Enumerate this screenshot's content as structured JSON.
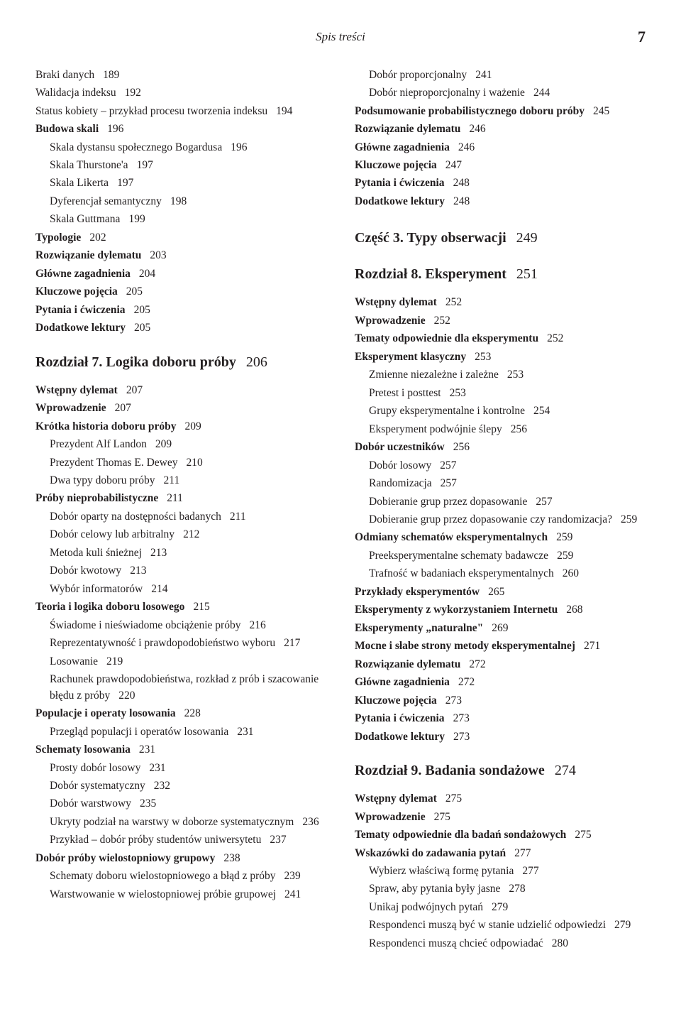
{
  "header_title": "Spis treści",
  "page_number": "7",
  "left_column": [
    {
      "type": "entry",
      "lvl": 0,
      "bold": false,
      "text": "Braki danych",
      "pg": "189"
    },
    {
      "type": "entry",
      "lvl": 0,
      "bold": false,
      "text": "Walidacja indeksu",
      "pg": "192"
    },
    {
      "type": "entry",
      "lvl": 0,
      "bold": false,
      "text": "Status kobiety – przykład procesu tworzenia indeksu",
      "pg": "194"
    },
    {
      "type": "entry",
      "lvl": 0,
      "bold": true,
      "text": "Budowa skali",
      "pg": "196"
    },
    {
      "type": "entry",
      "lvl": 1,
      "bold": false,
      "text": "Skala dystansu społecznego Bogardusa",
      "pg": "196"
    },
    {
      "type": "entry",
      "lvl": 1,
      "bold": false,
      "text": "Skala Thurstone'a",
      "pg": "197"
    },
    {
      "type": "entry",
      "lvl": 1,
      "bold": false,
      "text": "Skala Likerta",
      "pg": "197"
    },
    {
      "type": "entry",
      "lvl": 1,
      "bold": false,
      "text": "Dyferencjał semantyczny",
      "pg": "198"
    },
    {
      "type": "entry",
      "lvl": 1,
      "bold": false,
      "text": "Skala Guttmana",
      "pg": "199"
    },
    {
      "type": "entry",
      "lvl": 0,
      "bold": true,
      "text": "Typologie",
      "pg": "202"
    },
    {
      "type": "entry",
      "lvl": 0,
      "bold": true,
      "text": "Rozwiązanie dylematu",
      "pg": "203"
    },
    {
      "type": "entry",
      "lvl": 0,
      "bold": true,
      "text": "Główne zagadnienia",
      "pg": "204"
    },
    {
      "type": "entry",
      "lvl": 0,
      "bold": true,
      "text": "Kluczowe pojęcia",
      "pg": "205"
    },
    {
      "type": "entry",
      "lvl": 0,
      "bold": true,
      "text": "Pytania i ćwiczenia",
      "pg": "205"
    },
    {
      "type": "entry",
      "lvl": 0,
      "bold": true,
      "text": "Dodatkowe lektury",
      "pg": "205"
    },
    {
      "type": "chapter",
      "text": "Rozdział 7. Logika doboru próby",
      "pg": "206"
    },
    {
      "type": "entry",
      "lvl": 0,
      "bold": true,
      "text": "Wstępny dylemat",
      "pg": "207"
    },
    {
      "type": "entry",
      "lvl": 0,
      "bold": true,
      "text": "Wprowadzenie",
      "pg": "207"
    },
    {
      "type": "entry",
      "lvl": 0,
      "bold": true,
      "text": "Krótka historia doboru próby",
      "pg": "209"
    },
    {
      "type": "entry",
      "lvl": 1,
      "bold": false,
      "text": "Prezydent Alf Landon",
      "pg": "209"
    },
    {
      "type": "entry",
      "lvl": 1,
      "bold": false,
      "text": "Prezydent Thomas E. Dewey",
      "pg": "210"
    },
    {
      "type": "entry",
      "lvl": 1,
      "bold": false,
      "text": "Dwa typy doboru próby",
      "pg": "211"
    },
    {
      "type": "entry",
      "lvl": 0,
      "bold": true,
      "text": "Próby nieprobabilistyczne",
      "pg": "211"
    },
    {
      "type": "entry",
      "lvl": 1,
      "bold": false,
      "text": "Dobór oparty na dostępności badanych",
      "pg": "211"
    },
    {
      "type": "entry",
      "lvl": 1,
      "bold": false,
      "text": "Dobór celowy lub arbitralny",
      "pg": "212"
    },
    {
      "type": "entry",
      "lvl": 1,
      "bold": false,
      "text": "Metoda kuli śnieżnej",
      "pg": "213"
    },
    {
      "type": "entry",
      "lvl": 1,
      "bold": false,
      "text": "Dobór kwotowy",
      "pg": "213"
    },
    {
      "type": "entry",
      "lvl": 1,
      "bold": false,
      "text": "Wybór informatorów",
      "pg": "214"
    },
    {
      "type": "entry",
      "lvl": 0,
      "bold": true,
      "text": "Teoria i logika doboru losowego",
      "pg": "215"
    },
    {
      "type": "entry",
      "lvl": 1,
      "bold": false,
      "text": "Świadome i nieświadome obciążenie próby",
      "pg": "216"
    },
    {
      "type": "entry",
      "lvl": 1,
      "bold": false,
      "text": "Reprezentatywność i prawdopodobieństwo wyboru",
      "pg": "217"
    },
    {
      "type": "entry",
      "lvl": 1,
      "bold": false,
      "text": "Losowanie",
      "pg": "219"
    },
    {
      "type": "entry",
      "lvl": 1,
      "bold": false,
      "text": "Rachunek prawdopodobieństwa, rozkład z prób i szacowanie błędu z próby",
      "pg": "220"
    },
    {
      "type": "entry",
      "lvl": 0,
      "bold": true,
      "text": "Populacje i operaty losowania",
      "pg": "228"
    },
    {
      "type": "entry",
      "lvl": 1,
      "bold": false,
      "text": "Przegląd populacji i operatów losowania",
      "pg": "231"
    },
    {
      "type": "entry",
      "lvl": 0,
      "bold": true,
      "text": "Schematy losowania",
      "pg": "231"
    },
    {
      "type": "entry",
      "lvl": 1,
      "bold": false,
      "text": "Prosty dobór losowy",
      "pg": "231"
    },
    {
      "type": "entry",
      "lvl": 1,
      "bold": false,
      "text": "Dobór systematyczny",
      "pg": "232"
    },
    {
      "type": "entry",
      "lvl": 1,
      "bold": false,
      "text": "Dobór warstwowy",
      "pg": "235"
    },
    {
      "type": "entry",
      "lvl": 1,
      "bold": false,
      "text": "Ukryty podział na warstwy w doborze systematycznym",
      "pg": "236"
    },
    {
      "type": "entry",
      "lvl": 1,
      "bold": false,
      "text": "Przykład – dobór próby studentów uniwersytetu",
      "pg": "237"
    },
    {
      "type": "entry",
      "lvl": 0,
      "bold": true,
      "text": "Dobór próby wielostopniowy grupowy",
      "pg": "238"
    },
    {
      "type": "entry",
      "lvl": 1,
      "bold": false,
      "text": "Schematy doboru wielostopniowego a błąd z próby",
      "pg": "239"
    },
    {
      "type": "entry",
      "lvl": 1,
      "bold": false,
      "text": "Warstwowanie w wielostopniowej próbie grupowej",
      "pg": "241"
    }
  ],
  "right_column": [
    {
      "type": "entry",
      "lvl": 1,
      "bold": false,
      "text": "Dobór proporcjonalny",
      "pg": "241"
    },
    {
      "type": "entry",
      "lvl": 1,
      "bold": false,
      "text": "Dobór nieproporcjonalny i ważenie",
      "pg": "244"
    },
    {
      "type": "entry",
      "lvl": 0,
      "bold": true,
      "text": "Podsumowanie probabilistycznego doboru próby",
      "pg": "245"
    },
    {
      "type": "entry",
      "lvl": 0,
      "bold": true,
      "text": "Rozwiązanie dylematu",
      "pg": "246"
    },
    {
      "type": "entry",
      "lvl": 0,
      "bold": true,
      "text": "Główne zagadnienia",
      "pg": "246"
    },
    {
      "type": "entry",
      "lvl": 0,
      "bold": true,
      "text": "Kluczowe pojęcia",
      "pg": "247"
    },
    {
      "type": "entry",
      "lvl": 0,
      "bold": true,
      "text": "Pytania i ćwiczenia",
      "pg": "248"
    },
    {
      "type": "entry",
      "lvl": 0,
      "bold": true,
      "text": "Dodatkowe lektury",
      "pg": "248"
    },
    {
      "type": "part",
      "text": "Część 3. Typy obserwacji",
      "pg": "249"
    },
    {
      "type": "chapter",
      "text": "Rozdział 8. Eksperyment",
      "pg": "251"
    },
    {
      "type": "entry",
      "lvl": 0,
      "bold": true,
      "text": "Wstępny dylemat",
      "pg": "252"
    },
    {
      "type": "entry",
      "lvl": 0,
      "bold": true,
      "text": "Wprowadzenie",
      "pg": "252"
    },
    {
      "type": "entry",
      "lvl": 0,
      "bold": true,
      "text": "Tematy odpowiednie dla eksperymentu",
      "pg": "252"
    },
    {
      "type": "entry",
      "lvl": 0,
      "bold": true,
      "text": "Eksperyment klasyczny",
      "pg": "253"
    },
    {
      "type": "entry",
      "lvl": 1,
      "bold": false,
      "text": "Zmienne niezależne i zależne",
      "pg": "253"
    },
    {
      "type": "entry",
      "lvl": 1,
      "bold": false,
      "text": "Pretest i posttest",
      "pg": "253"
    },
    {
      "type": "entry",
      "lvl": 1,
      "bold": false,
      "text": "Grupy eksperymentalne i kontrolne",
      "pg": "254"
    },
    {
      "type": "entry",
      "lvl": 1,
      "bold": false,
      "text": "Eksperyment podwójnie ślepy",
      "pg": "256"
    },
    {
      "type": "entry",
      "lvl": 0,
      "bold": true,
      "text": "Dobór uczestników",
      "pg": "256"
    },
    {
      "type": "entry",
      "lvl": 1,
      "bold": false,
      "text": "Dobór losowy",
      "pg": "257"
    },
    {
      "type": "entry",
      "lvl": 1,
      "bold": false,
      "text": "Randomizacja",
      "pg": "257"
    },
    {
      "type": "entry",
      "lvl": 1,
      "bold": false,
      "text": "Dobieranie grup przez dopasowanie",
      "pg": "257"
    },
    {
      "type": "entry",
      "lvl": 1,
      "bold": false,
      "text": "Dobieranie grup przez dopasowanie czy randomizacja?",
      "pg": "259"
    },
    {
      "type": "entry",
      "lvl": 0,
      "bold": true,
      "text": "Odmiany schematów eksperymentalnych",
      "pg": "259"
    },
    {
      "type": "entry",
      "lvl": 1,
      "bold": false,
      "text": "Preeksperymentalne schematy badawcze",
      "pg": "259"
    },
    {
      "type": "entry",
      "lvl": 1,
      "bold": false,
      "text": "Trafność w badaniach eksperymentalnych",
      "pg": "260"
    },
    {
      "type": "entry",
      "lvl": 0,
      "bold": true,
      "text": "Przykłady eksperymentów",
      "pg": "265"
    },
    {
      "type": "entry",
      "lvl": 0,
      "bold": true,
      "text": "Eksperymenty z wykorzystaniem Internetu",
      "pg": "268"
    },
    {
      "type": "entry",
      "lvl": 0,
      "bold": true,
      "text": "Eksperymenty „naturalne\"",
      "pg": "269"
    },
    {
      "type": "entry",
      "lvl": 0,
      "bold": true,
      "text": "Mocne i słabe strony metody eksperymentalnej",
      "pg": "271"
    },
    {
      "type": "entry",
      "lvl": 0,
      "bold": true,
      "text": "Rozwiązanie dylematu",
      "pg": "272"
    },
    {
      "type": "entry",
      "lvl": 0,
      "bold": true,
      "text": "Główne zagadnienia",
      "pg": "272"
    },
    {
      "type": "entry",
      "lvl": 0,
      "bold": true,
      "text": "Kluczowe pojęcia",
      "pg": "273"
    },
    {
      "type": "entry",
      "lvl": 0,
      "bold": true,
      "text": "Pytania i ćwiczenia",
      "pg": "273"
    },
    {
      "type": "entry",
      "lvl": 0,
      "bold": true,
      "text": "Dodatkowe lektury",
      "pg": "273"
    },
    {
      "type": "chapter",
      "text": "Rozdział 9. Badania sondażowe",
      "pg": "274"
    },
    {
      "type": "entry",
      "lvl": 0,
      "bold": true,
      "text": "Wstępny dylemat",
      "pg": "275"
    },
    {
      "type": "entry",
      "lvl": 0,
      "bold": true,
      "text": "Wprowadzenie",
      "pg": "275"
    },
    {
      "type": "entry",
      "lvl": 0,
      "bold": true,
      "text": "Tematy odpowiednie dla badań sondażowych",
      "pg": "275"
    },
    {
      "type": "entry",
      "lvl": 0,
      "bold": true,
      "text": "Wskazówki do zadawania pytań",
      "pg": "277"
    },
    {
      "type": "entry",
      "lvl": 1,
      "bold": false,
      "text": "Wybierz właściwą formę pytania",
      "pg": "277"
    },
    {
      "type": "entry",
      "lvl": 1,
      "bold": false,
      "text": "Spraw, aby pytania były jasne",
      "pg": "278"
    },
    {
      "type": "entry",
      "lvl": 1,
      "bold": false,
      "text": "Unikaj podwójnych pytań",
      "pg": "279"
    },
    {
      "type": "entry",
      "lvl": 1,
      "bold": false,
      "text": "Respondenci muszą być w stanie udzielić odpowiedzi",
      "pg": "279"
    },
    {
      "type": "entry",
      "lvl": 1,
      "bold": false,
      "text": "Respondenci muszą chcieć odpowiadać",
      "pg": "280"
    }
  ]
}
